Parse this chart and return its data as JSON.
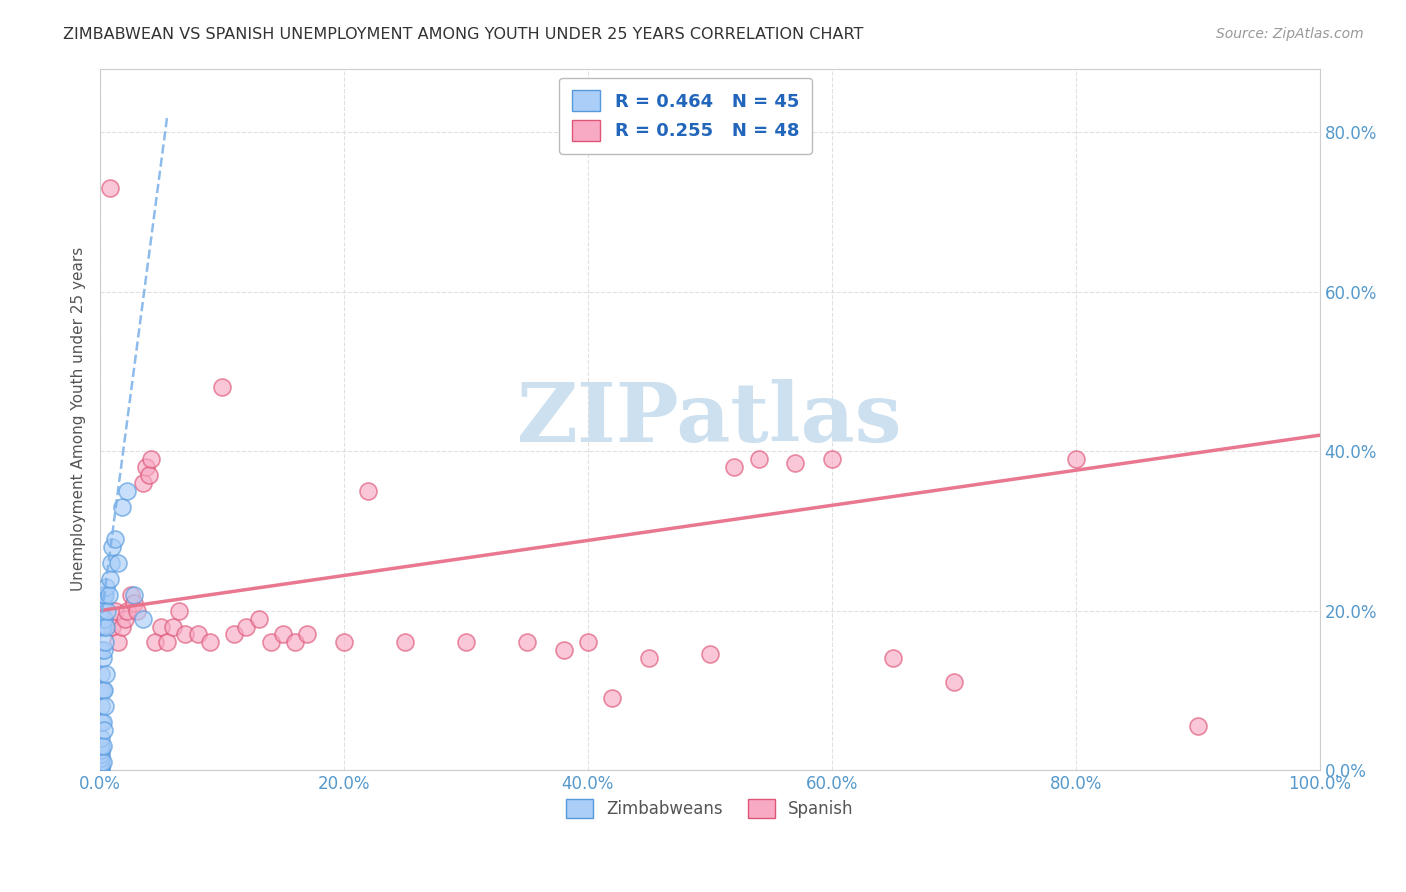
{
  "title": "ZIMBABWEAN VS SPANISH UNEMPLOYMENT AMONG YOUTH UNDER 25 YEARS CORRELATION CHART",
  "source": "Source: ZipAtlas.com",
  "ylabel": "Unemployment Among Youth under 25 years",
  "r_zimbabwe": 0.464,
  "n_zimbabwe": 45,
  "r_spanish": 0.255,
  "n_spanish": 48,
  "color_zimbabwe": "#aacef8",
  "color_spanish": "#f8aac4",
  "edge_zimbabwe": "#5599dd",
  "edge_spanish": "#dd5577",
  "trendline_zim_color": "#7ab0e8",
  "trendline_spa_color": "#e8708a",
  "grid_color": "#dddddd",
  "background": "#ffffff",
  "watermark": "ZIPatlas",
  "watermark_color": "#cce0f0",
  "title_color": "#333333",
  "source_color": "#999999",
  "axis_tick_color": "#5599cc",
  "legend_text_color": "#2266bb",
  "zim_x": [
    0.001,
    0.001,
    0.001,
    0.001,
    0.001,
    0.001,
    0.001,
    0.001,
    0.001,
    0.001,
    0.001,
    0.001,
    0.001,
    0.001,
    0.001,
    0.001,
    0.002,
    0.002,
    0.002,
    0.002,
    0.002,
    0.002,
    0.002,
    0.003,
    0.003,
    0.003,
    0.003,
    0.003,
    0.004,
    0.004,
    0.004,
    0.005,
    0.005,
    0.005,
    0.006,
    0.007,
    0.008,
    0.009,
    0.01,
    0.012,
    0.015,
    0.018,
    0.022,
    0.028,
    0.035
  ],
  "zim_y": [
    0.001,
    0.003,
    0.006,
    0.01,
    0.015,
    0.02,
    0.025,
    0.03,
    0.04,
    0.06,
    0.08,
    0.1,
    0.12,
    0.15,
    0.18,
    0.2,
    0.01,
    0.03,
    0.06,
    0.1,
    0.14,
    0.18,
    0.21,
    0.05,
    0.1,
    0.15,
    0.19,
    0.22,
    0.08,
    0.16,
    0.22,
    0.12,
    0.18,
    0.23,
    0.2,
    0.22,
    0.24,
    0.26,
    0.28,
    0.29,
    0.26,
    0.33,
    0.35,
    0.22,
    0.19
  ],
  "spa_x": [
    0.008,
    0.01,
    0.012,
    0.015,
    0.018,
    0.02,
    0.022,
    0.025,
    0.028,
    0.03,
    0.035,
    0.038,
    0.04,
    0.042,
    0.045,
    0.05,
    0.055,
    0.06,
    0.065,
    0.07,
    0.08,
    0.09,
    0.1,
    0.11,
    0.12,
    0.13,
    0.14,
    0.15,
    0.16,
    0.17,
    0.2,
    0.22,
    0.25,
    0.3,
    0.35,
    0.38,
    0.4,
    0.42,
    0.45,
    0.5,
    0.52,
    0.54,
    0.57,
    0.6,
    0.65,
    0.7,
    0.8,
    0.9
  ],
  "spa_y": [
    0.73,
    0.18,
    0.2,
    0.16,
    0.18,
    0.19,
    0.2,
    0.22,
    0.21,
    0.2,
    0.36,
    0.38,
    0.37,
    0.39,
    0.16,
    0.18,
    0.16,
    0.18,
    0.2,
    0.17,
    0.17,
    0.16,
    0.48,
    0.17,
    0.18,
    0.19,
    0.16,
    0.17,
    0.16,
    0.17,
    0.16,
    0.35,
    0.16,
    0.16,
    0.16,
    0.15,
    0.16,
    0.09,
    0.14,
    0.145,
    0.38,
    0.39,
    0.385,
    0.39,
    0.14,
    0.11,
    0.39,
    0.055
  ],
  "xlim": [
    0.0,
    1.0
  ],
  "ylim": [
    0.0,
    0.88
  ],
  "xticks": [
    0.0,
    0.2,
    0.4,
    0.6,
    0.8,
    1.0
  ],
  "yticks": [
    0.0,
    0.2,
    0.4,
    0.6,
    0.8
  ],
  "xtick_labels": [
    "0.0%",
    "20.0%",
    "40.0%",
    "60.0%",
    "80.0%",
    "100.0%"
  ],
  "ytick_labels": [
    "0.0%",
    "20.0%",
    "40.0%",
    "60.0%",
    "80.0%"
  ],
  "trendline_zim_x_start": 0.0,
  "trendline_zim_x_end": 0.06,
  "trendline_spa_x_start": 0.0,
  "trendline_spa_x_end": 1.0,
  "trendline_spa_y_start": 0.2,
  "trendline_spa_y_end": 0.42
}
